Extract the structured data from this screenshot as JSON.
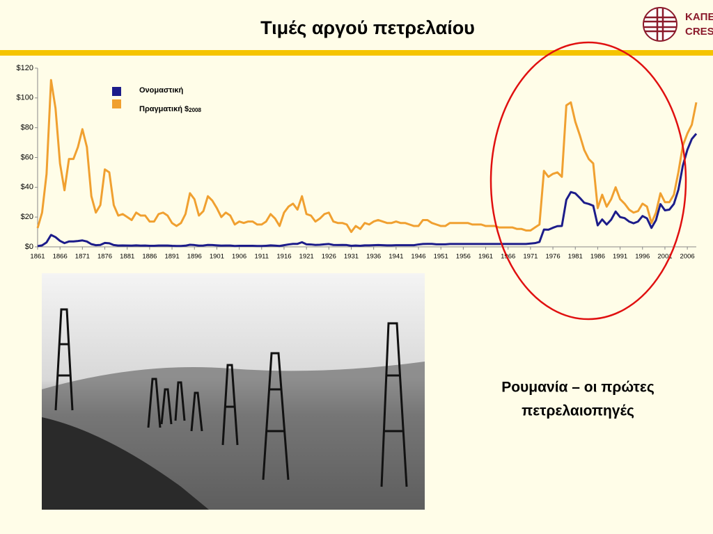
{
  "header": {
    "title": "Τιμές αργού πετρελαίου",
    "logo": [
      "ΚΑΠΕ",
      "CRES"
    ]
  },
  "caption": [
    "Ρουμανία – οι πρώτες",
    "πετρελαιοπηγές"
  ],
  "chart_data": {
    "type": "line",
    "x": [
      1861,
      1862,
      1863,
      1864,
      1865,
      1866,
      1867,
      1868,
      1869,
      1870,
      1871,
      1872,
      1873,
      1874,
      1875,
      1876,
      1877,
      1878,
      1879,
      1880,
      1881,
      1882,
      1883,
      1884,
      1885,
      1886,
      1887,
      1888,
      1889,
      1890,
      1891,
      1892,
      1893,
      1894,
      1895,
      1896,
      1897,
      1898,
      1899,
      1900,
      1901,
      1902,
      1903,
      1904,
      1905,
      1906,
      1907,
      1908,
      1909,
      1910,
      1911,
      1912,
      1913,
      1914,
      1915,
      1916,
      1917,
      1918,
      1919,
      1920,
      1921,
      1922,
      1923,
      1924,
      1925,
      1926,
      1927,
      1928,
      1929,
      1930,
      1931,
      1932,
      1933,
      1934,
      1935,
      1936,
      1937,
      1938,
      1939,
      1940,
      1941,
      1942,
      1943,
      1944,
      1945,
      1946,
      1947,
      1948,
      1949,
      1950,
      1951,
      1952,
      1953,
      1954,
      1955,
      1956,
      1957,
      1958,
      1959,
      1960,
      1961,
      1962,
      1963,
      1964,
      1965,
      1966,
      1967,
      1968,
      1969,
      1970,
      1971,
      1972,
      1973,
      1974,
      1975,
      1976,
      1977,
      1978,
      1979,
      1980,
      1981,
      1982,
      1983,
      1984,
      1985,
      1986,
      1987,
      1988,
      1989,
      1990,
      1991,
      1992,
      1993,
      1994,
      1995,
      1996,
      1997,
      1998,
      1999,
      2000,
      2001,
      2002,
      2003,
      2004,
      2005,
      2006,
      2007,
      2008
    ],
    "series": [
      {
        "name": "Ονομαστική",
        "color": "#1c1c8a",
        "values": [
          0.5,
          1,
          3,
          8,
          6.5,
          4,
          2.5,
          3.6,
          3.6,
          3.9,
          4.3,
          3.6,
          1.8,
          1.1,
          1.3,
          2.6,
          2.4,
          1.2,
          0.9,
          0.95,
          0.9,
          0.8,
          1,
          0.8,
          0.9,
          0.7,
          0.7,
          0.9,
          0.9,
          0.9,
          0.7,
          0.6,
          0.6,
          0.8,
          1.4,
          1.2,
          0.8,
          0.9,
          1.3,
          1.2,
          1,
          0.8,
          0.9,
          0.9,
          0.6,
          0.7,
          0.7,
          0.7,
          0.7,
          0.6,
          0.6,
          0.7,
          1,
          0.8,
          0.6,
          1.1,
          1.6,
          2,
          2,
          3.1,
          1.7,
          1.6,
          1.3,
          1.4,
          1.7,
          1.9,
          1.3,
          1.2,
          1.3,
          1.2,
          0.7,
          0.9,
          0.7,
          1,
          1,
          1.1,
          1.2,
          1.1,
          1,
          1,
          1.1,
          1.1,
          1.1,
          1.1,
          1.1,
          1.6,
          1.9,
          2,
          2,
          1.7,
          1.7,
          1.7,
          1.9,
          1.9,
          1.9,
          1.9,
          1.9,
          1.9,
          1.9,
          1.9,
          1.9,
          1.9,
          1.9,
          1.9,
          1.9,
          1.9,
          1.9,
          1.9,
          1.9,
          1.9,
          2.2,
          2.5,
          3.3,
          11.6,
          11.5,
          12.8,
          13.9,
          14,
          31.6,
          36.8,
          35.9,
          32.9,
          29.6,
          28.8,
          27.6,
          14.4,
          18.4,
          15,
          18.2,
          23.7,
          20,
          19.3,
          17,
          15.8,
          17,
          20.7,
          19.1,
          12.7,
          17.9,
          28.7,
          24.5,
          25,
          28.8,
          38.3,
          54.5,
          65.1,
          72.4,
          76
        ]
      },
      {
        "name": "Πραγματική $",
        "subscript": "2008",
        "color": "#f0a030",
        "values": [
          12.6,
          23,
          49,
          112,
          93,
          56,
          38,
          59,
          59,
          67,
          79,
          67,
          34,
          23,
          28,
          52,
          50,
          28,
          21,
          22,
          20,
          18,
          23,
          21,
          21,
          17,
          17,
          22,
          23,
          21,
          16,
          14,
          16,
          22,
          36,
          32,
          21,
          24,
          34,
          31,
          26,
          20,
          23,
          21,
          15,
          17,
          16,
          17,
          17,
          15,
          15,
          17,
          22,
          19,
          14,
          23,
          27,
          29,
          25,
          34,
          22,
          21,
          17,
          19,
          22,
          23,
          17,
          16,
          16,
          15,
          10,
          14,
          12,
          16,
          15,
          17,
          18,
          17,
          16,
          16,
          17,
          16,
          16,
          15,
          14,
          14,
          18,
          18,
          16,
          15,
          14,
          14,
          16,
          16,
          16,
          16,
          16,
          15,
          15,
          15,
          14,
          14,
          14,
          13,
          13,
          13,
          13,
          12,
          12,
          11,
          11,
          13,
          15,
          51,
          47,
          49,
          50,
          47,
          95,
          97,
          84,
          75,
          65,
          59,
          56,
          26,
          35,
          27,
          32,
          40,
          32,
          29,
          25,
          23,
          24,
          29,
          27,
          16,
          23,
          36,
          30,
          30,
          35,
          50,
          68,
          76,
          82,
          97
        ]
      }
    ],
    "xlim": [
      1861,
      2008
    ],
    "xticks": [
      1861,
      1866,
      1871,
      1876,
      1881,
      1886,
      1891,
      1896,
      1901,
      1906,
      1911,
      1916,
      1921,
      1926,
      1931,
      1936,
      1941,
      1946,
      1951,
      1956,
      1961,
      1966,
      1971,
      1976,
      1981,
      1986,
      1991,
      1996,
      2001,
      2006
    ],
    "ylim": [
      0,
      120
    ],
    "yticks": [
      {
        "value": 0,
        "label": "$0"
      },
      {
        "value": 20,
        "label": "$20"
      },
      {
        "value": 40,
        "label": "$40"
      },
      {
        "value": 60,
        "label": "$60"
      },
      {
        "value": 80,
        "label": "$80"
      },
      {
        "value": 100,
        "label": "$100"
      },
      {
        "value": 120,
        "label": "$120"
      }
    ]
  }
}
